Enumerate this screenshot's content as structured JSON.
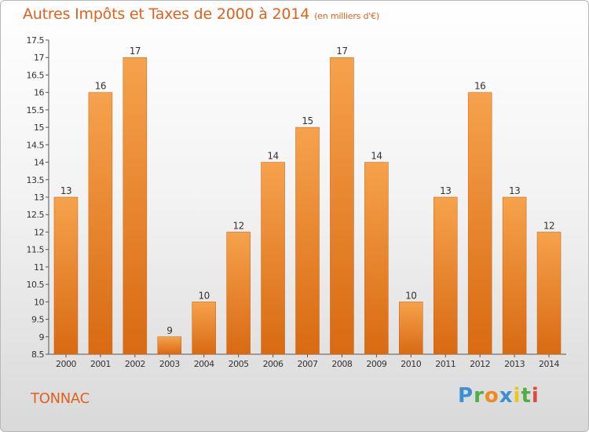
{
  "header": {
    "title": "Autres Impôts et Taxes de 2000 à 2014",
    "subtitle": "(en milliers d'€)"
  },
  "footer": {
    "place": "TONNAC",
    "logo": "Proxiti"
  },
  "colors": {
    "accent": "#e0611d",
    "bar_top": "#f6a24c",
    "bar_bottom": "#d86a12",
    "logo_p": "#3c8fd1",
    "logo_r": "#4daf45",
    "logo_o": "#f08a1d",
    "logo_x": "#3c8fd1",
    "logo_i": "#e8c71d",
    "logo_t": "#4daf45",
    "logo_i2": "#e04a3b"
  },
  "chart_data": {
    "type": "bar",
    "title": "Autres Impôts et Taxes de 2000 à 2014",
    "xlabel": "",
    "ylabel": "",
    "categories": [
      "2000",
      "2001",
      "2002",
      "2003",
      "2004",
      "2005",
      "2006",
      "2007",
      "2008",
      "2009",
      "2010",
      "2011",
      "2012",
      "2013",
      "2014"
    ],
    "values": [
      13,
      16,
      17,
      9,
      10,
      12,
      14,
      15,
      17,
      14,
      10,
      13,
      16,
      13,
      12
    ],
    "data_labels": [
      "13",
      "16",
      "17",
      "9",
      "10",
      "12",
      "14",
      "15",
      "17",
      "14",
      "10",
      "13",
      "16",
      "13",
      "12"
    ],
    "ylim": [
      8.5,
      17.5
    ],
    "yticks": [
      8.5,
      9,
      9.5,
      10,
      10.5,
      11,
      11.5,
      12,
      12.5,
      13,
      13.5,
      14,
      14.5,
      15,
      15.5,
      16,
      16.5,
      17,
      17.5
    ],
    "ytick_labels": [
      "8.5",
      "9",
      "9.5",
      "10",
      "10.5",
      "11",
      "11.5",
      "12",
      "12.5",
      "13",
      "13.5",
      "14",
      "14.5",
      "15",
      "15.5",
      "16",
      "16.5",
      "17",
      "17.5"
    ],
    "grid": false,
    "legend": "none"
  }
}
